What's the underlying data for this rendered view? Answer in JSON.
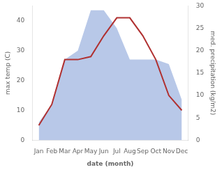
{
  "chart_data": {
    "type": "line",
    "xlabel": "date (month)",
    "ylabel": "max temp (C)",
    "y2label": "med. precipitation (kg/m2)",
    "categories": [
      "Jan",
      "Feb",
      "Mar",
      "Apr",
      "May",
      "Jun",
      "Jul",
      "Aug",
      "Sep",
      "Oct",
      "Nov",
      "Dec"
    ],
    "series": [
      {
        "type": "area",
        "axis": "y2",
        "color": "#b8c8e8",
        "values": [
          4,
          8,
          18,
          20,
          29,
          29,
          25,
          18,
          18,
          18,
          17,
          9
        ]
      },
      {
        "type": "line",
        "color": "#b03030",
        "values": [
          5,
          12,
          27,
          27,
          28,
          35,
          41,
          41,
          35,
          27,
          15,
          10
        ]
      }
    ],
    "ylim": [
      0,
      45
    ],
    "yticks": [
      0,
      10,
      20,
      30,
      40
    ],
    "y2lim": [
      0,
      30
    ],
    "y2ticks": [
      0,
      5,
      10,
      15,
      20,
      25,
      30
    ],
    "grid": false
  }
}
